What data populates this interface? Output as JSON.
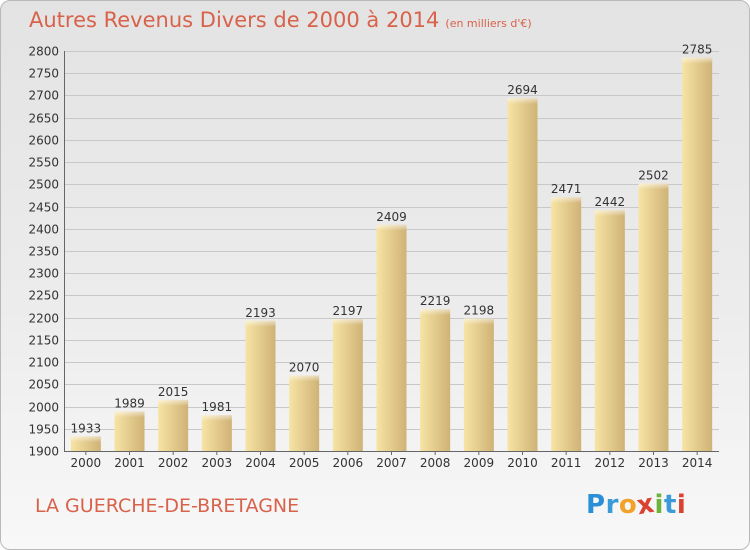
{
  "title": "Autres Revenus Divers de 2000 à 2014",
  "subtitle": "(en milliers d'€)",
  "location_label": "LA GUERCHE-DE-BRETAGNE",
  "logo": {
    "letters": [
      "P",
      "r",
      "o",
      "x",
      "i",
      "t",
      "i"
    ],
    "colors": [
      "#2a8fd6",
      "#3a9bd8",
      "#f2a12a",
      "#d94130",
      "#6bb33a",
      "#3a9bd8",
      "#d94130"
    ]
  },
  "colors": {
    "title": "#d8624a",
    "bar_light": "#f7e4a4",
    "bar_dark": "#cfb276",
    "grid": "#c8c8c8"
  },
  "chart_data": {
    "type": "bar",
    "categories": [
      "2000",
      "2001",
      "2002",
      "2003",
      "2004",
      "2005",
      "2006",
      "2007",
      "2008",
      "2009",
      "2010",
      "2011",
      "2012",
      "2013",
      "2014"
    ],
    "values": [
      1933,
      1989,
      2015,
      1981,
      2193,
      2070,
      2197,
      2409,
      2219,
      2198,
      2694,
      2471,
      2442,
      2502,
      2785
    ],
    "ylim": [
      1900,
      2800
    ],
    "yticks": [
      1900,
      1950,
      2000,
      2050,
      2100,
      2150,
      2200,
      2250,
      2300,
      2350,
      2400,
      2450,
      2500,
      2550,
      2600,
      2650,
      2700,
      2750,
      2800
    ],
    "grid": true,
    "data_labels": true
  }
}
